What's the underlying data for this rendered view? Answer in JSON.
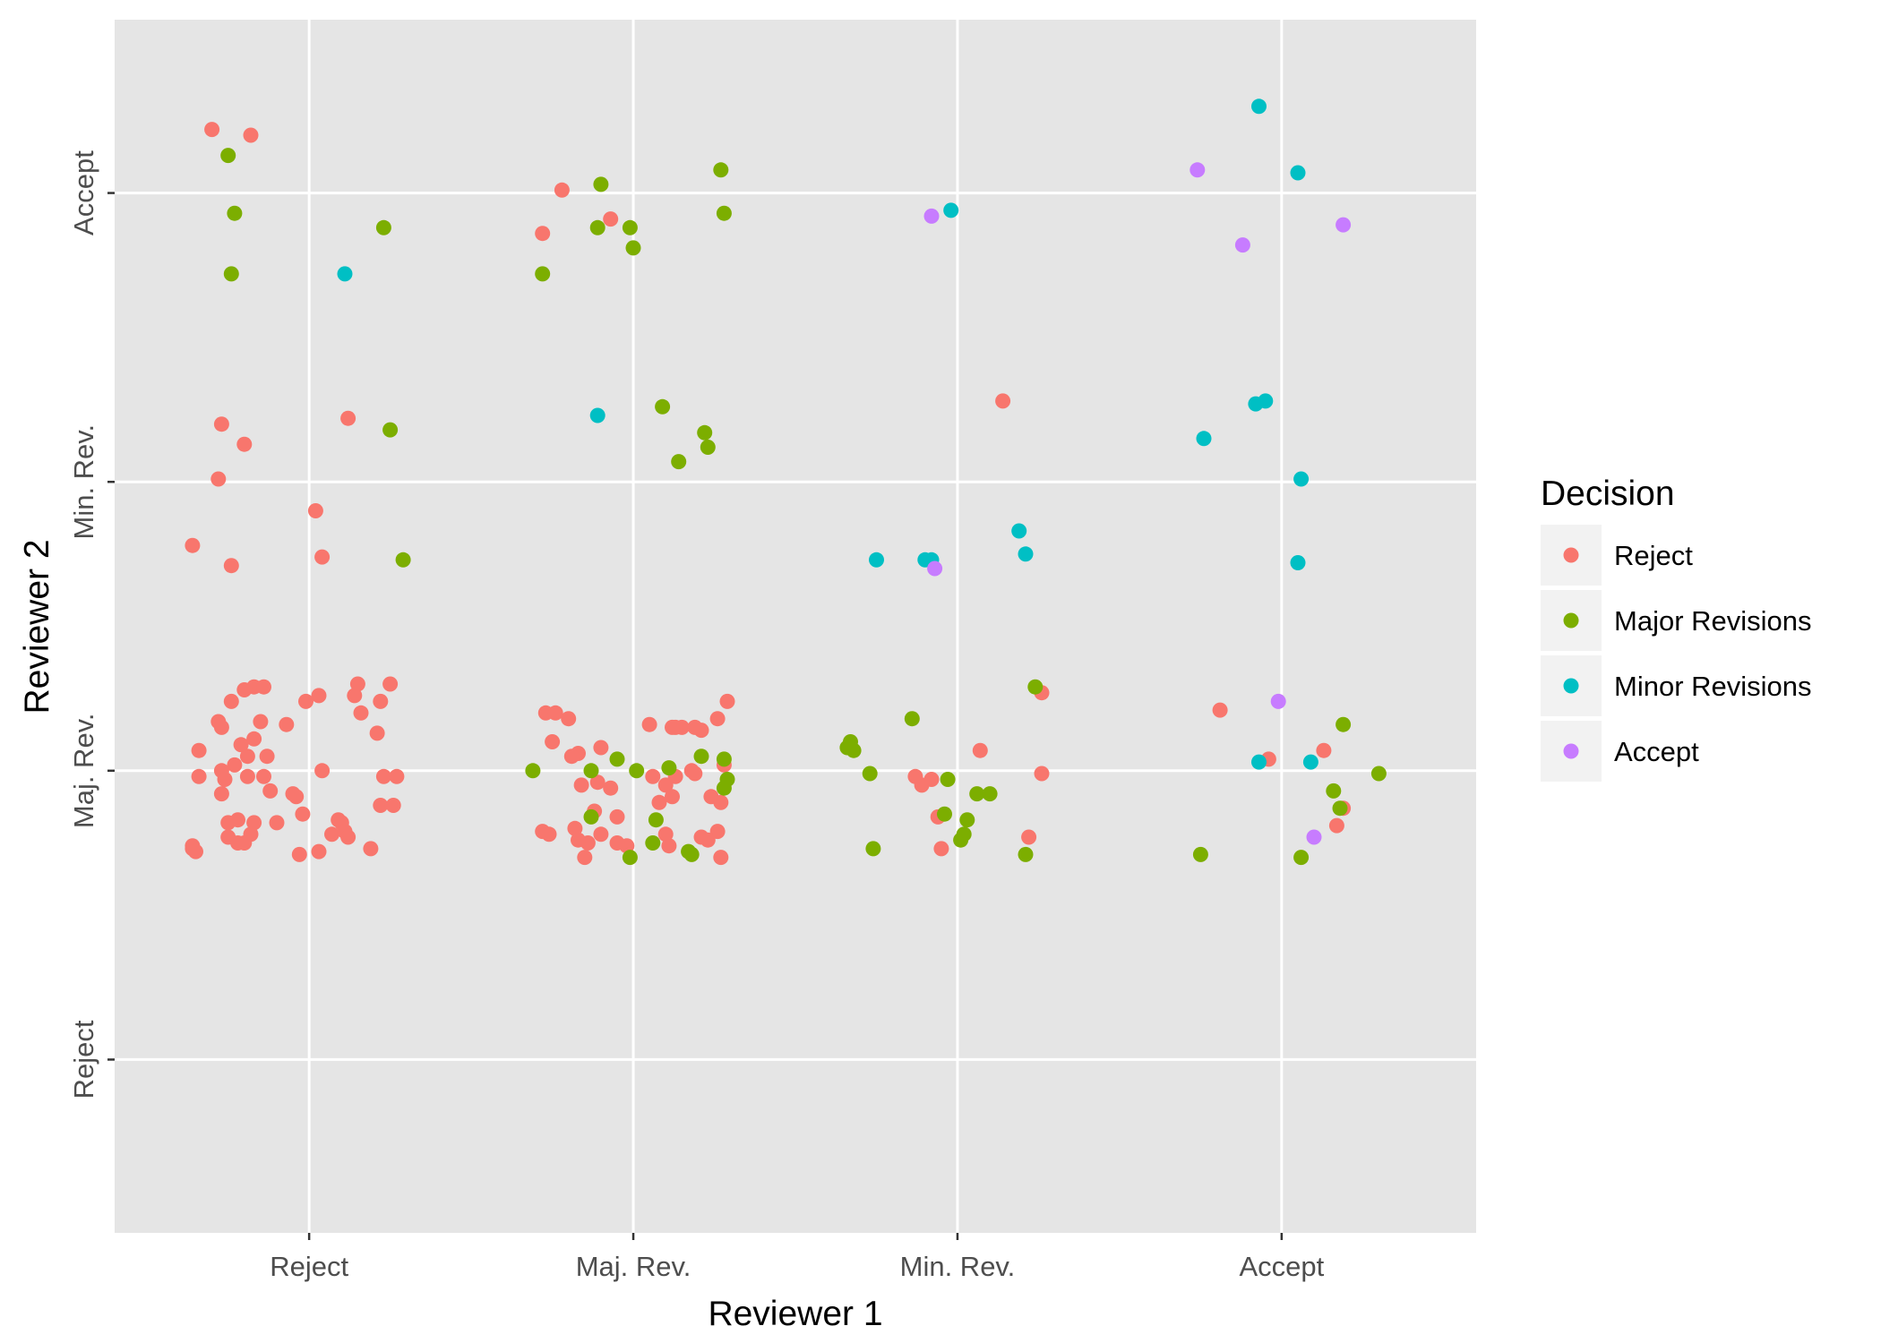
{
  "chart_data": {
    "type": "scatter",
    "title": "",
    "xlabel": "Reviewer 1",
    "ylabel": "Reviewer 2",
    "x_categories": [
      "Reject",
      "Maj. Rev.",
      "Min. Rev.",
      "Accept"
    ],
    "y_categories": [
      "Reject",
      "Maj. Rev.",
      "Min. Rev.",
      "Accept"
    ],
    "xlim": [
      0.4,
      4.6
    ],
    "ylim": [
      0.4,
      4.6
    ],
    "jitter": true,
    "grid": true,
    "legend": {
      "title": "Decision",
      "position": "right",
      "entries": [
        "Reject",
        "Major Revisions",
        "Minor Revisions",
        "Accept"
      ]
    },
    "colors": {
      "Reject": "#F8766D",
      "Major Revisions": "#7CAE00",
      "Minor Revisions": "#00BFC4",
      "Accept": "#C77CFF"
    },
    "series": [
      {
        "name": "Reject",
        "points": [
          [
            0.7,
            4.22
          ],
          [
            0.82,
            4.2
          ],
          [
            0.73,
            3.2
          ],
          [
            0.8,
            3.13
          ],
          [
            0.72,
            3.01
          ],
          [
            0.64,
            2.78
          ],
          [
            0.76,
            2.71
          ],
          [
            1.02,
            2.9
          ],
          [
            1.04,
            2.74
          ],
          [
            1.12,
            3.22
          ],
          [
            0.83,
            2.29
          ],
          [
            0.86,
            2.29
          ],
          [
            0.72,
            2.17
          ],
          [
            0.76,
            2.24
          ],
          [
            0.8,
            2.28
          ],
          [
            0.66,
            2.07
          ],
          [
            0.83,
            2.11
          ],
          [
            0.81,
            2.05
          ],
          [
            0.73,
            1.92
          ],
          [
            0.75,
            1.82
          ],
          [
            0.78,
            1.83
          ],
          [
            0.82,
            1.78
          ],
          [
            0.64,
            1.74
          ],
          [
            1.03,
            2.26
          ],
          [
            1.14,
            2.26
          ],
          [
            1.15,
            2.3
          ],
          [
            1.25,
            2.3
          ],
          [
            1.23,
            1.98
          ],
          [
            1.27,
            1.98
          ],
          [
            1.26,
            1.88
          ],
          [
            1.09,
            1.83
          ],
          [
            1.19,
            1.73
          ],
          [
            0.73,
            2.15
          ],
          [
            0.99,
            2.24
          ],
          [
            0.85,
            2.17
          ],
          [
            0.93,
            2.16
          ],
          [
            1.16,
            2.2
          ],
          [
            1.22,
            2.24
          ],
          [
            1.21,
            2.13
          ],
          [
            0.87,
            2.05
          ],
          [
            0.77,
            2.02
          ],
          [
            0.79,
            2.09
          ],
          [
            0.73,
            2.0
          ],
          [
            0.86,
            1.98
          ],
          [
            0.66,
            1.98
          ],
          [
            0.81,
            1.98
          ],
          [
            0.74,
            1.97
          ],
          [
            0.88,
            1.93
          ],
          [
            0.95,
            1.92
          ],
          [
            1.04,
            2.0
          ],
          [
            0.96,
            1.91
          ],
          [
            0.98,
            1.85
          ],
          [
            1.1,
            1.82
          ],
          [
            1.22,
            1.88
          ],
          [
            0.9,
            1.82
          ],
          [
            0.83,
            1.82
          ],
          [
            0.75,
            1.77
          ],
          [
            1.07,
            1.78
          ],
          [
            1.11,
            1.79
          ],
          [
            1.03,
            1.72
          ],
          [
            0.97,
            1.71
          ],
          [
            0.78,
            1.75
          ],
          [
            0.8,
            1.75
          ],
          [
            0.64,
            1.73
          ],
          [
            0.65,
            1.72
          ],
          [
            1.12,
            1.77
          ],
          [
            1.78,
            4.01
          ],
          [
            1.72,
            3.86
          ],
          [
            1.93,
            3.91
          ],
          [
            1.8,
            2.18
          ],
          [
            1.85,
            1.7
          ],
          [
            2.27,
            1.7
          ],
          [
            1.73,
            2.2
          ],
          [
            1.76,
            2.2
          ],
          [
            1.83,
            2.06
          ],
          [
            1.75,
            2.1
          ],
          [
            1.81,
            2.05
          ],
          [
            1.9,
            2.08
          ],
          [
            2.15,
            2.15
          ],
          [
            2.05,
            2.16
          ],
          [
            2.13,
            2.15
          ],
          [
            2.12,
            2.15
          ],
          [
            2.19,
            2.15
          ],
          [
            2.21,
            2.14
          ],
          [
            2.26,
            2.18
          ],
          [
            2.29,
            2.24
          ],
          [
            2.28,
            2.02
          ],
          [
            2.18,
            2.0
          ],
          [
            2.19,
            1.99
          ],
          [
            2.13,
            1.98
          ],
          [
            2.06,
            1.98
          ],
          [
            2.1,
            1.95
          ],
          [
            1.89,
            1.96
          ],
          [
            1.84,
            1.95
          ],
          [
            2.08,
            1.89
          ],
          [
            2.24,
            1.91
          ],
          [
            2.12,
            1.91
          ],
          [
            2.27,
            1.89
          ],
          [
            1.93,
            1.94
          ],
          [
            1.88,
            1.86
          ],
          [
            1.95,
            1.84
          ],
          [
            1.82,
            1.8
          ],
          [
            1.9,
            1.78
          ],
          [
            1.74,
            1.78
          ],
          [
            1.72,
            1.79
          ],
          [
            2.1,
            1.78
          ],
          [
            2.26,
            1.79
          ],
          [
            1.98,
            1.74
          ],
          [
            2.11,
            1.74
          ],
          [
            2.23,
            1.76
          ],
          [
            2.21,
            1.77
          ],
          [
            1.95,
            1.75
          ],
          [
            1.86,
            1.75
          ],
          [
            1.83,
            1.76
          ],
          [
            3.14,
            3.28
          ],
          [
            3.26,
            2.27
          ],
          [
            3.26,
            1.99
          ],
          [
            2.89,
            1.95
          ],
          [
            2.94,
            1.84
          ],
          [
            3.07,
            2.07
          ],
          [
            3.22,
            1.77
          ],
          [
            2.92,
            1.97
          ],
          [
            2.87,
            1.98
          ],
          [
            2.95,
            1.73
          ],
          [
            3.81,
            2.21
          ],
          [
            3.96,
            2.04
          ],
          [
            4.13,
            2.07
          ],
          [
            4.19,
            1.87
          ],
          [
            4.17,
            1.81
          ]
        ]
      },
      {
        "name": "Major Revisions",
        "points": [
          [
            0.75,
            4.13
          ],
          [
            0.77,
            3.93
          ],
          [
            0.76,
            3.72
          ],
          [
            1.23,
            3.88
          ],
          [
            1.25,
            3.18
          ],
          [
            1.29,
            2.73
          ],
          [
            1.72,
            3.72
          ],
          [
            1.9,
            4.03
          ],
          [
            1.89,
            3.88
          ],
          [
            1.99,
            3.88
          ],
          [
            2.0,
            3.81
          ],
          [
            2.27,
            4.08
          ],
          [
            2.28,
            3.93
          ],
          [
            2.09,
            3.26
          ],
          [
            2.22,
            3.17
          ],
          [
            2.23,
            3.12
          ],
          [
            2.14,
            3.07
          ],
          [
            1.69,
            2.0
          ],
          [
            1.87,
            2.0
          ],
          [
            1.95,
            2.04
          ],
          [
            2.01,
            2.0
          ],
          [
            2.11,
            2.01
          ],
          [
            2.21,
            2.05
          ],
          [
            2.28,
            2.04
          ],
          [
            2.29,
            1.97
          ],
          [
            2.28,
            1.94
          ],
          [
            1.87,
            1.84
          ],
          [
            2.07,
            1.83
          ],
          [
            2.06,
            1.75
          ],
          [
            2.18,
            1.71
          ],
          [
            2.17,
            1.72
          ],
          [
            1.99,
            1.7
          ],
          [
            2.67,
            2.1
          ],
          [
            2.66,
            2.08
          ],
          [
            2.68,
            2.07
          ],
          [
            2.73,
            1.99
          ],
          [
            2.86,
            2.18
          ],
          [
            2.97,
            1.97
          ],
          [
            3.06,
            1.92
          ],
          [
            3.1,
            1.92
          ],
          [
            3.03,
            1.83
          ],
          [
            3.01,
            1.76
          ],
          [
            3.24,
            2.29
          ],
          [
            2.96,
            1.85
          ],
          [
            3.02,
            1.78
          ],
          [
            2.74,
            1.73
          ],
          [
            3.21,
            1.71
          ],
          [
            4.19,
            2.16
          ],
          [
            4.16,
            1.93
          ],
          [
            4.3,
            1.99
          ],
          [
            3.75,
            1.71
          ],
          [
            4.18,
            1.87
          ],
          [
            4.06,
            1.7
          ]
        ]
      },
      {
        "name": "Minor Revisions",
        "points": [
          [
            1.11,
            3.72
          ],
          [
            1.89,
            3.23
          ],
          [
            2.98,
            3.94
          ],
          [
            3.76,
            3.15
          ],
          [
            3.92,
            3.27
          ],
          [
            3.95,
            3.28
          ],
          [
            4.06,
            3.01
          ],
          [
            4.05,
            2.72
          ],
          [
            2.75,
            2.73
          ],
          [
            2.9,
            2.73
          ],
          [
            2.92,
            2.73
          ],
          [
            3.19,
            2.83
          ],
          [
            3.21,
            2.75
          ],
          [
            3.93,
            2.03
          ],
          [
            4.09,
            2.03
          ],
          [
            3.93,
            4.3
          ],
          [
            4.05,
            4.07
          ]
        ]
      },
      {
        "name": "Accept",
        "points": [
          [
            2.92,
            3.92
          ],
          [
            3.74,
            4.08
          ],
          [
            3.88,
            3.82
          ],
          [
            4.19,
            3.89
          ],
          [
            2.93,
            2.7
          ],
          [
            3.99,
            2.24
          ],
          [
            4.1,
            1.77
          ]
        ]
      }
    ]
  }
}
